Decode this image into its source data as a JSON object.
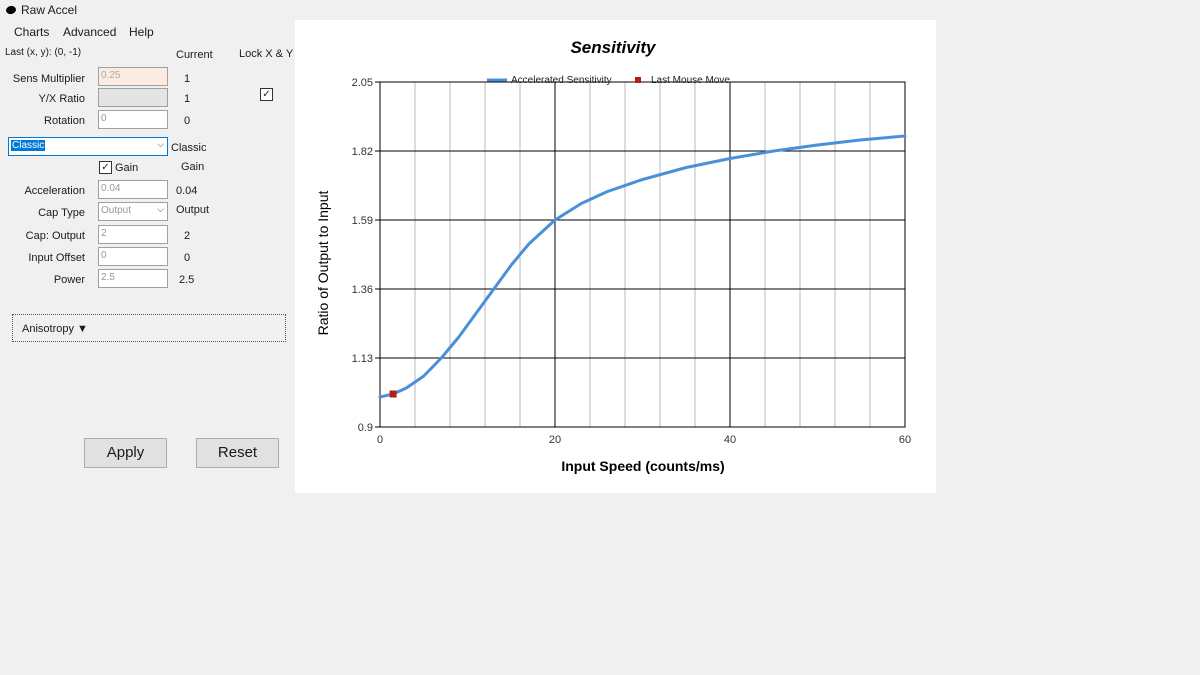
{
  "window": {
    "title": "Raw Accel",
    "icon": "raw-accel-logo-icon"
  },
  "menu": {
    "items": [
      "Charts",
      "Advanced",
      "Help"
    ]
  },
  "header": {
    "last_xy": "Last (x, y): (0, -1)",
    "current_label": "Current",
    "lock_label": "Lock X & Y",
    "lock_checked": true
  },
  "fields": {
    "sens_multiplier": {
      "label": "Sens Multiplier",
      "value": "0.25",
      "current": "1"
    },
    "yx_ratio": {
      "label": "Y/X Ratio",
      "value": "",
      "current": "1"
    },
    "rotation": {
      "label": "Rotation",
      "value": "0",
      "current": "0"
    }
  },
  "mode": {
    "selected": "Classic",
    "current": "Classic"
  },
  "gain": {
    "label": "Gain",
    "checked": true,
    "current": "Gain"
  },
  "params": {
    "acceleration": {
      "label": "Acceleration",
      "value": "0.04",
      "current": "0.04"
    },
    "cap_type": {
      "label": "Cap Type",
      "value": "Output",
      "current": "Output"
    },
    "cap_output": {
      "label": "Cap: Output",
      "value": "2",
      "current": "2"
    },
    "input_offset": {
      "label": "Input Offset",
      "value": "0",
      "current": "0"
    },
    "power": {
      "label": "Power",
      "value": "2.5",
      "current": "2.5"
    }
  },
  "anisotropy": {
    "label": "Anisotropy ▼"
  },
  "buttons": {
    "apply": "Apply",
    "reset": "Reset"
  },
  "chart_data": {
    "type": "line",
    "title": "Sensitivity",
    "xlabel": "Input Speed (counts/ms)",
    "ylabel": "Ratio of Output to Input",
    "xlim": [
      0,
      60
    ],
    "ylim": [
      0.9,
      2.05
    ],
    "xticks": [
      "0",
      "20",
      "40",
      "60"
    ],
    "yticks": [
      "0.9",
      "1.13",
      "1.36",
      "1.59",
      "1.82",
      "2.05"
    ],
    "legend_position": "top",
    "series": [
      {
        "name": "Accelerated Sensitivity",
        "color": "#4a90d9",
        "x": [
          0,
          1.5,
          3,
          5,
          7,
          9,
          11,
          13,
          15,
          17,
          20,
          23,
          26,
          30,
          35,
          40,
          45,
          50,
          55,
          60
        ],
        "y": [
          1.0,
          1.01,
          1.03,
          1.07,
          1.13,
          1.2,
          1.28,
          1.36,
          1.44,
          1.51,
          1.59,
          1.645,
          1.685,
          1.725,
          1.765,
          1.795,
          1.82,
          1.84,
          1.857,
          1.87
        ]
      },
      {
        "name": "Last Mouse Move",
        "color": "#b01e1e",
        "x": [
          1.5
        ],
        "y": [
          1.01
        ]
      }
    ]
  }
}
